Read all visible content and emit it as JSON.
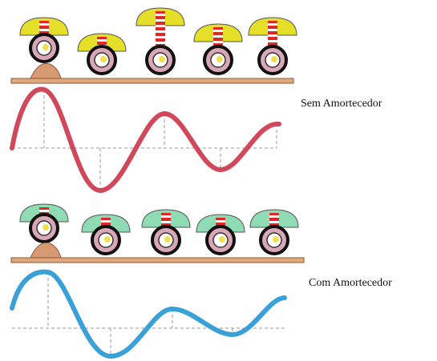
{
  "diagrams": [
    {
      "label": "Sem Amortecedor"
    },
    {
      "label": "Com Amortecedor"
    }
  ]
}
